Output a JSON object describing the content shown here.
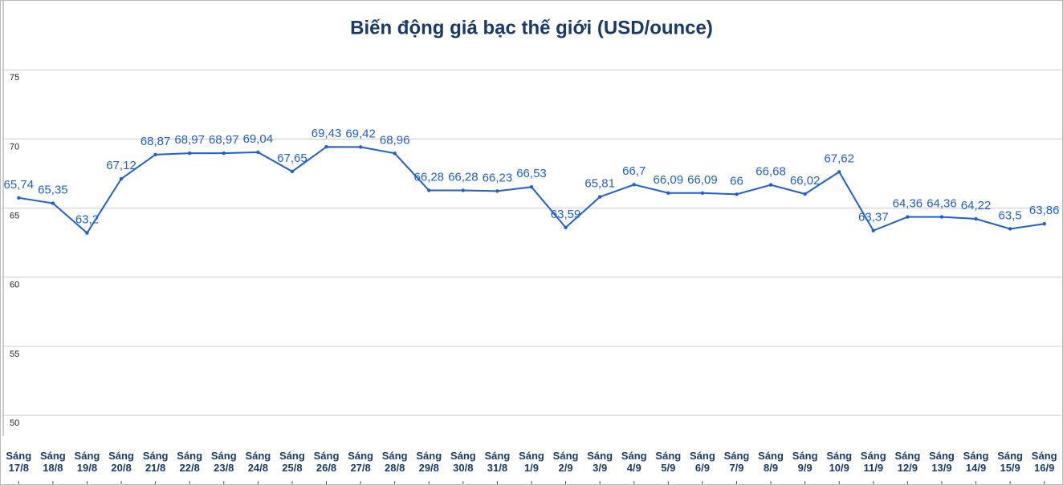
{
  "chart_data": {
    "type": "line",
    "title": "Biến động giá bạc thế giới (USD/ounce)",
    "categories": [
      "Sáng 17/8",
      "Sáng 18/8",
      "Sáng 19/8",
      "Sáng 20/8",
      "Sáng 21/8",
      "Sáng 22/8",
      "Sáng 23/8",
      "Sáng 24/8",
      "Sáng 25/8",
      "Sáng 26/8",
      "Sáng 27/8",
      "Sáng 28/8",
      "Sáng 29/8",
      "Sáng 30/8",
      "Sáng 31/8",
      "Sáng 1/9",
      "Sáng 2/9",
      "Sáng 3/9",
      "Sáng 4/9",
      "Sáng 5/9",
      "Sáng 6/9",
      "Sáng 7/9",
      "Sáng 8/9",
      "Sáng 9/9",
      "Sáng 10/9",
      "Sáng 11/9",
      "Sáng 12/9",
      "Sáng 13/9",
      "Sáng 14/9",
      "Sáng 15/9",
      "Sáng 16/9"
    ],
    "values": [
      65.74,
      65.35,
      63.2,
      67.12,
      68.87,
      68.97,
      68.97,
      69.04,
      67.65,
      69.43,
      69.42,
      68.96,
      66.28,
      66.28,
      66.23,
      66.53,
      63.59,
      65.81,
      66.7,
      66.09,
      66.09,
      66,
      66.68,
      66.02,
      67.62,
      63.37,
      64.36,
      64.36,
      64.22,
      63.5,
      63.86
    ],
    "value_labels": [
      "65,74",
      "65,35",
      "63,2",
      "67,12",
      "68,87",
      "68,97",
      "68,97",
      "69,04",
      "67,65",
      "69,43",
      "69,42",
      "68,96",
      "66,28",
      "66,28",
      "66,23",
      "66,53",
      "63,59",
      "65,81",
      "66,7",
      "66,09",
      "66,09",
      "66",
      "66,68",
      "66,02",
      "67,62",
      "63,37",
      "64,36",
      "64,36",
      "64,22",
      "63,5",
      "63,86"
    ],
    "color": "#1f5fcf",
    "ylim": [
      48.5,
      80
    ],
    "yticks": [
      50,
      55,
      60,
      65,
      70,
      75
    ],
    "grid": true
  }
}
